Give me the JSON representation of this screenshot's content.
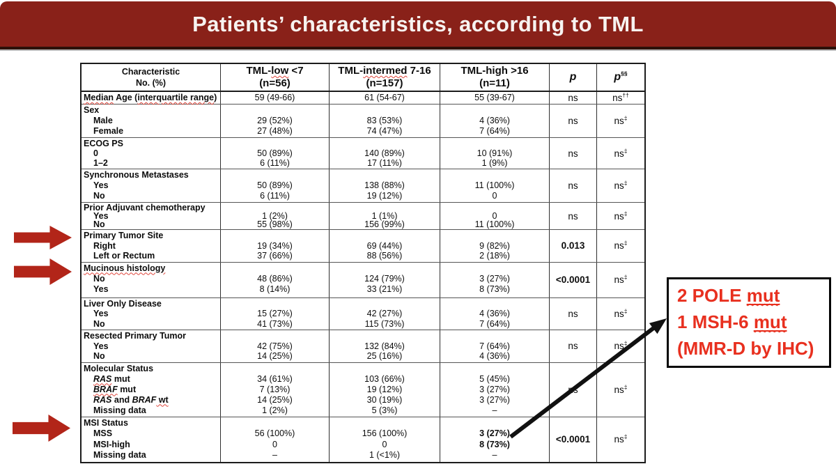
{
  "title": "Patients’ characteristics, according to TML",
  "colors": {
    "banner": "#892119",
    "banner_strip": "#2c110a",
    "block_arrow_red": "#b22519",
    "callout_text_red": "#e8301f",
    "annotation_arrow_black": "#111111"
  },
  "table": {
    "header": {
      "characteristic": [
        "Characteristic",
        "No. (%)"
      ],
      "groups": [
        {
          "line1": [
            {
              "t": "TML-"
            },
            {
              "t": "low",
              "sq": true
            },
            {
              "t": " <7"
            }
          ],
          "line2": "(n=56)"
        },
        {
          "line1": [
            {
              "t": "TML-"
            },
            {
              "t": "intermed",
              "sq": true
            },
            {
              "t": " 7-16"
            }
          ],
          "line2": "(n=157)"
        },
        {
          "line1": [
            {
              "t": "TML-high >16"
            }
          ],
          "line2": "(n=11)"
        }
      ],
      "p": {
        "t": "p"
      },
      "p2": {
        "t": "p",
        "sup": "§§"
      }
    },
    "sections": [
      {
        "label": [
          {
            "t": "Median",
            "sq": true
          },
          {
            "t": " Age ("
          },
          {
            "t": "interquartile range",
            "sq": true
          },
          {
            "t": ")"
          }
        ],
        "items": [],
        "single_line": true,
        "cols": [
          [
            "59 (49-66)"
          ],
          [
            "61 (54-67)"
          ],
          [
            "55 (39-67)"
          ]
        ],
        "p": {
          "t": "ns"
        },
        "p2": {
          "t": "ns",
          "sup": "††"
        }
      },
      {
        "label": [
          {
            "t": "Sex"
          }
        ],
        "items": [
          [
            {
              "t": "Male"
            }
          ],
          [
            {
              "t": "Female"
            }
          ]
        ],
        "cols": [
          [
            "29 (52%)",
            "27 (48%)"
          ],
          [
            "83 (53%)",
            "74 (47%)"
          ],
          [
            "4 (36%)",
            "7 (64%)"
          ]
        ],
        "p": {
          "t": "ns"
        },
        "p2": {
          "t": "ns",
          "sup": "‡"
        }
      },
      {
        "label": [
          {
            "t": "ECOG PS"
          }
        ],
        "items": [
          [
            {
              "t": "0"
            }
          ],
          [
            {
              "t": "1–2"
            }
          ]
        ],
        "cols": [
          [
            "50 (89%)",
            "6 (11%)"
          ],
          [
            "140 (89%)",
            "17 (11%)"
          ],
          [
            "10 (91%)",
            "1 (9%)"
          ]
        ],
        "p": {
          "t": "ns"
        },
        "p2": {
          "t": "ns",
          "sup": "‡"
        }
      },
      {
        "label": [
          {
            "t": "Synchronous Metastases"
          }
        ],
        "items": [
          [
            {
              "t": "Yes"
            }
          ],
          [
            {
              "t": "No"
            }
          ]
        ],
        "cols": [
          [
            "50 (89%)",
            "6 (11%)"
          ],
          [
            "138 (88%)",
            "19 (12%)"
          ],
          [
            "11 (100%)",
            "0"
          ]
        ],
        "p": {
          "t": "ns"
        },
        "p2": {
          "t": "ns",
          "sup": "‡"
        }
      },
      {
        "label": [
          {
            "t": "Prior Adjuvant chemotherapy"
          }
        ],
        "items": [
          [
            {
              "t": "Yes"
            }
          ],
          [
            {
              "t": "No"
            }
          ]
        ],
        "cols": [
          [
            "1 (2%)",
            "55 (98%)"
          ],
          [
            "1 (1%)",
            "156 (99%)"
          ],
          [
            "0",
            "11 (100%)"
          ]
        ],
        "p": {
          "t": "ns"
        },
        "p2": {
          "t": "ns",
          "sup": "‡"
        }
      },
      {
        "label": [
          {
            "t": "Primary Tumor Site"
          }
        ],
        "items": [
          [
            {
              "t": "Right"
            }
          ],
          [
            {
              "t": "Left or Rectum"
            }
          ]
        ],
        "cols": [
          [
            "19 (34%)",
            "37 (66%)"
          ],
          [
            "69 (44%)",
            "88 (56%)"
          ],
          [
            "9 (82%)",
            "2 (18%)"
          ]
        ],
        "p": {
          "t": "0.013",
          "b": true
        },
        "p2": {
          "t": "ns",
          "sup": "‡"
        }
      },
      {
        "label": [
          {
            "t": "Mucinous histology",
            "sq": true
          }
        ],
        "items": [
          [
            {
              "t": "No"
            }
          ],
          [
            {
              "t": "Yes"
            }
          ]
        ],
        "cols": [
          [
            "48 (86%)",
            "8 (14%)"
          ],
          [
            "124 (79%)",
            "33 (21%)"
          ],
          [
            "3 (27%)",
            "8 (73%)"
          ]
        ],
        "p": {
          "t": "<0.0001",
          "b": true
        },
        "p2": {
          "t": "ns",
          "sup": "‡"
        }
      },
      {
        "label": [
          {
            "t": "Liver Only Disease"
          }
        ],
        "items": [
          [
            {
              "t": "Yes"
            }
          ],
          [
            {
              "t": "No"
            }
          ]
        ],
        "cols": [
          [
            "15 (27%)",
            "41 (73%)"
          ],
          [
            "42 (27%)",
            "115 (73%)"
          ],
          [
            "4 (36%)",
            "7 (64%)"
          ]
        ],
        "p": {
          "t": "ns"
        },
        "p2": {
          "t": "ns",
          "sup": "‡"
        }
      },
      {
        "label": [
          {
            "t": "Resected Primary Tumor"
          }
        ],
        "items": [
          [
            {
              "t": "Yes"
            }
          ],
          [
            {
              "t": "No"
            }
          ]
        ],
        "cols": [
          [
            "42 (75%)",
            "14 (25%)"
          ],
          [
            "132 (84%)",
            "25 (16%)"
          ],
          [
            "7 (64%)",
            "4 (36%)"
          ]
        ],
        "p": {
          "t": "ns"
        },
        "p2": {
          "t": "ns",
          "sup": "‡"
        }
      },
      {
        "label": [
          {
            "t": "Molecular Status"
          }
        ],
        "items": [
          [
            {
              "t": "RAS",
              "i": true,
              "sq": true
            },
            {
              "t": " mut"
            }
          ],
          [
            {
              "t": "BRAF",
              "i": true,
              "sq": true
            },
            {
              "t": " mut"
            }
          ],
          [
            {
              "t": "RAS",
              "i": true
            },
            {
              "t": " and "
            },
            {
              "t": "BRAF",
              "i": true
            },
            {
              "t": " wt",
              "sq": true
            }
          ],
          [
            {
              "t": "Missing data"
            }
          ]
        ],
        "cols": [
          [
            "34 (61%)",
            "7 (13%)",
            "14 (25%)",
            "1 (2%)"
          ],
          [
            "103 (66%)",
            "19 (12%)",
            "30 (19%)",
            "5 (3%)"
          ],
          [
            "5 (45%)",
            "3 (27%)",
            "3 (27%)",
            "–"
          ]
        ],
        "p": {
          "t": "ns"
        },
        "p2": {
          "t": "ns",
          "sup": "‡"
        }
      },
      {
        "label": [
          {
            "t": "MSI Status"
          }
        ],
        "items": [
          [
            {
              "t": "MSS"
            }
          ],
          [
            {
              "t": "MSI-high"
            }
          ],
          [
            {
              "t": "Missing data"
            }
          ]
        ],
        "cols": [
          [
            "56 (100%)",
            "0",
            "–"
          ],
          [
            "156 (100%)",
            "0",
            "1 (<1%)"
          ],
          [
            {
              "t": "3 (27%)",
              "b": true
            },
            {
              "t": "8 (73%)",
              "b": true
            },
            "–"
          ]
        ],
        "p": {
          "t": "<0.0001",
          "b": true
        },
        "p2": {
          "t": "ns",
          "sup": "‡"
        }
      }
    ]
  },
  "callout": {
    "lines": [
      [
        {
          "t": "2 POLE "
        },
        {
          "t": "mut",
          "u": true,
          "sq": true
        }
      ],
      [
        {
          "t": "1 MSH-6 "
        },
        {
          "t": "mut",
          "u": true,
          "sq": true
        }
      ],
      [
        {
          "t": "(MMR-D by IHC)"
        }
      ]
    ]
  }
}
